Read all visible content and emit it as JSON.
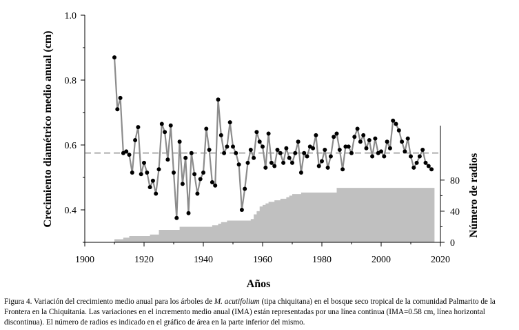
{
  "chart_data": {
    "type": "line",
    "xlabel": "Años",
    "ylabel": "Crecimiento diamétrico medio anual (cm)",
    "y2label": "Número de radios",
    "xlim": [
      1900,
      2020
    ],
    "ylim": [
      0.3,
      1.0
    ],
    "y2lim": [
      0,
      150
    ],
    "xticks": [
      "1900",
      "1920",
      "1940",
      "1960",
      "1980",
      "2000",
      "2020"
    ],
    "yticks": [
      "0.4",
      "0.6",
      "0.8",
      "1.0"
    ],
    "y2ticks": [
      "0",
      "40",
      "80"
    ],
    "grid": false,
    "reference_line": {
      "name": "IMA",
      "value": 0.575,
      "style": "dashed"
    },
    "series": [
      {
        "name": "Incremento medio anual",
        "type": "line",
        "color": "#8c8c8c",
        "x": [
          1910,
          1911,
          1912,
          1913,
          1914,
          1915,
          1916,
          1917,
          1918,
          1919,
          1920,
          1921,
          1922,
          1923,
          1924,
          1925,
          1926,
          1927,
          1928,
          1929,
          1930,
          1931,
          1932,
          1933,
          1934,
          1935,
          1936,
          1937,
          1938,
          1939,
          1940,
          1941,
          1942,
          1943,
          1944,
          1945,
          1946,
          1947,
          1948,
          1949,
          1950,
          1951,
          1952,
          1953,
          1954,
          1955,
          1956,
          1957,
          1958,
          1959,
          1960,
          1961,
          1962,
          1963,
          1964,
          1965,
          1966,
          1967,
          1968,
          1969,
          1970,
          1971,
          1972,
          1973,
          1974,
          1975,
          1976,
          1977,
          1978,
          1979,
          1980,
          1981,
          1982,
          1983,
          1984,
          1985,
          1986,
          1987,
          1988,
          1989,
          1990,
          1991,
          1992,
          1993,
          1994,
          1995,
          1996,
          1997,
          1998,
          1999,
          2000,
          2001,
          2002,
          2003,
          2004,
          2005,
          2006,
          2007,
          2008,
          2009,
          2010,
          2011,
          2012,
          2013,
          2014,
          2015,
          2016,
          2017
        ],
        "values": [
          0.87,
          0.71,
          0.745,
          0.575,
          0.58,
          0.57,
          0.515,
          0.615,
          0.655,
          0.51,
          0.545,
          0.515,
          0.47,
          0.49,
          0.45,
          0.525,
          0.665,
          0.64,
          0.555,
          0.66,
          0.515,
          0.375,
          0.61,
          0.48,
          0.56,
          0.39,
          0.575,
          0.51,
          0.45,
          0.495,
          0.515,
          0.65,
          0.585,
          0.485,
          0.475,
          0.74,
          0.63,
          0.575,
          0.595,
          0.67,
          0.595,
          0.575,
          0.54,
          0.4,
          0.465,
          0.545,
          0.585,
          0.56,
          0.64,
          0.61,
          0.595,
          0.53,
          0.635,
          0.545,
          0.535,
          0.585,
          0.575,
          0.545,
          0.59,
          0.56,
          0.545,
          0.575,
          0.61,
          0.515,
          0.575,
          0.565,
          0.595,
          0.59,
          0.63,
          0.535,
          0.55,
          0.585,
          0.53,
          0.565,
          0.625,
          0.635,
          0.585,
          0.525,
          0.595,
          0.595,
          0.575,
          0.625,
          0.65,
          0.61,
          0.63,
          0.59,
          0.615,
          0.565,
          0.62,
          0.575,
          0.58,
          0.565,
          0.61,
          0.59,
          0.675,
          0.665,
          0.645,
          0.61,
          0.58,
          0.62,
          0.565,
          0.53,
          0.545,
          0.565,
          0.585,
          0.545,
          0.535,
          0.525
        ]
      },
      {
        "name": "Número de radios",
        "type": "area",
        "axis": "y2",
        "color": "#c0c0c0",
        "x": [
          1910,
          1911,
          1912,
          1913,
          1914,
          1915,
          1916,
          1917,
          1918,
          1919,
          1920,
          1921,
          1922,
          1923,
          1924,
          1925,
          1926,
          1927,
          1928,
          1929,
          1930,
          1931,
          1932,
          1933,
          1934,
          1935,
          1936,
          1937,
          1938,
          1939,
          1940,
          1941,
          1942,
          1943,
          1944,
          1945,
          1946,
          1947,
          1948,
          1949,
          1950,
          1951,
          1952,
          1953,
          1954,
          1955,
          1956,
          1957,
          1958,
          1959,
          1960,
          1961,
          1962,
          1963,
          1964,
          1965,
          1966,
          1967,
          1968,
          1969,
          1970,
          1971,
          1972,
          1973,
          1974,
          1975,
          1976,
          1977,
          1978,
          1979,
          1980,
          1981,
          1982,
          1983,
          1984,
          1985,
          1986,
          1987,
          1988,
          1989,
          1990,
          1991,
          1992,
          1993,
          1994,
          1995,
          1996,
          1997,
          1998,
          1999,
          2000,
          2001,
          2002,
          2003,
          2004,
          2005,
          2006,
          2007,
          2008,
          2009,
          2010,
          2011,
          2012,
          2013,
          2014,
          2015,
          2016,
          2017
        ],
        "values": [
          4,
          4,
          4,
          6,
          6,
          8,
          8,
          8,
          8,
          8,
          8,
          8,
          10,
          10,
          10,
          16,
          16,
          16,
          16,
          16,
          16,
          16,
          20,
          20,
          20,
          20,
          20,
          20,
          20,
          20,
          20,
          20,
          20,
          22,
          22,
          24,
          26,
          26,
          28,
          28,
          28,
          28,
          28,
          28,
          28,
          28,
          30,
          36,
          40,
          46,
          48,
          50,
          52,
          52,
          54,
          54,
          56,
          56,
          58,
          60,
          62,
          62,
          62,
          64,
          64,
          64,
          64,
          64,
          64,
          64,
          64,
          64,
          64,
          64,
          64,
          70,
          70,
          70,
          70,
          70,
          70,
          70,
          70,
          70,
          70,
          70,
          70,
          70,
          70,
          70,
          70,
          70,
          70,
          70,
          70,
          70,
          70,
          70,
          70,
          70,
          70,
          70,
          70,
          70,
          70,
          70,
          70,
          70
        ]
      }
    ]
  },
  "caption": {
    "prefix": "Figura 4. Variación del crecimiento medio anual para los árboles de ",
    "species": "M. acutifolium",
    "suffix": " (tipa chiquitana) en el bosque seco tropical de la comunidad Palmarito de la Frontera en la Chiquitania. Las variaciones en el incremento medio anual (IMA) están representadas por una línea continua (IMA=0.58 cm, línea horizontal discontinua). El número de radios es indicado en el gráfico de área en la parte inferior del mismo."
  }
}
